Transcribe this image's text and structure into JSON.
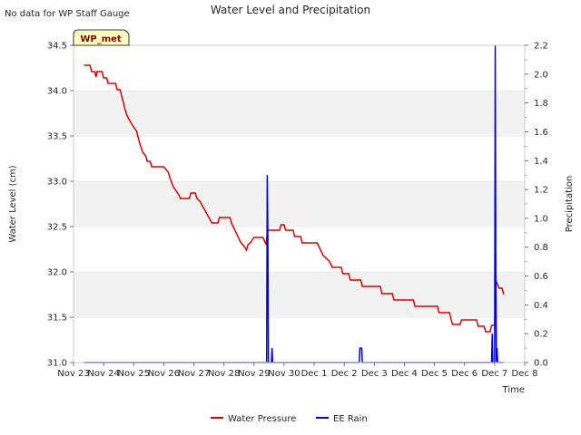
{
  "chart_data": {
    "type": "line",
    "title": "Water Level and Precipitation",
    "corner_note": "No data for WP Staff Gauge",
    "badge": "WP_met",
    "xlabel": "Time",
    "ylabel_left": "Water Level (cm)",
    "ylabel_right": "Precipitation",
    "x_range": [
      0,
      15
    ],
    "x_tick_labels": [
      "Nov 23",
      "Nov 24",
      "Nov 25",
      "Nov 26",
      "Nov 27",
      "Nov 28",
      "Nov 29",
      "Nov 30",
      "Dec 1",
      "Dec 2",
      "Dec 3",
      "Dec 4",
      "Dec 5",
      "Dec 6",
      "Dec 7",
      "Dec 8"
    ],
    "ylim_left": [
      31.0,
      34.5
    ],
    "y_ticks_left": [
      "31.0",
      "31.5",
      "32.0",
      "32.5",
      "33.0",
      "33.5",
      "34.0",
      "34.5"
    ],
    "ylim_right": [
      0.0,
      2.2
    ],
    "y_ticks_right": [
      "0.0",
      "0.2",
      "0.4",
      "0.6",
      "0.8",
      "1.0",
      "1.2",
      "1.4",
      "1.6",
      "1.8",
      "2.0",
      "2.2"
    ],
    "grid": "horizontal bands",
    "legend": "bottom-center",
    "series": [
      {
        "name": "Water Pressure",
        "axis": "left",
        "color": "#dd0000",
        "points": [
          [
            0.35,
            34.28
          ],
          [
            0.55,
            34.28
          ],
          [
            0.6,
            34.21
          ],
          [
            0.7,
            34.21
          ],
          [
            0.75,
            34.15
          ],
          [
            0.78,
            34.21
          ],
          [
            0.95,
            34.21
          ],
          [
            1.0,
            34.14
          ],
          [
            1.1,
            34.14
          ],
          [
            1.15,
            34.08
          ],
          [
            1.4,
            34.08
          ],
          [
            1.45,
            34.01
          ],
          [
            1.55,
            34.01
          ],
          [
            1.6,
            33.94
          ],
          [
            1.65,
            33.88
          ],
          [
            1.7,
            33.81
          ],
          [
            1.75,
            33.75
          ],
          [
            1.8,
            33.71
          ],
          [
            1.85,
            33.68
          ],
          [
            1.9,
            33.65
          ],
          [
            2.0,
            33.6
          ],
          [
            2.1,
            33.55
          ],
          [
            2.15,
            33.48
          ],
          [
            2.2,
            33.42
          ],
          [
            2.25,
            33.37
          ],
          [
            2.3,
            33.32
          ],
          [
            2.4,
            33.28
          ],
          [
            2.45,
            33.22
          ],
          [
            2.55,
            33.22
          ],
          [
            2.6,
            33.16
          ],
          [
            3.0,
            33.16
          ],
          [
            3.15,
            33.1
          ],
          [
            3.2,
            33.04
          ],
          [
            3.25,
            33.0
          ],
          [
            3.3,
            32.95
          ],
          [
            3.4,
            32.9
          ],
          [
            3.5,
            32.85
          ],
          [
            3.55,
            32.81
          ],
          [
            3.85,
            32.81
          ],
          [
            3.9,
            32.87
          ],
          [
            4.05,
            32.87
          ],
          [
            4.1,
            32.81
          ],
          [
            4.2,
            32.78
          ],
          [
            4.3,
            32.72
          ],
          [
            4.4,
            32.66
          ],
          [
            4.5,
            32.6
          ],
          [
            4.6,
            32.54
          ],
          [
            4.8,
            32.54
          ],
          [
            4.85,
            32.6
          ],
          [
            5.2,
            32.6
          ],
          [
            5.25,
            32.54
          ],
          [
            5.35,
            32.47
          ],
          [
            5.45,
            32.4
          ],
          [
            5.55,
            32.33
          ],
          [
            5.7,
            32.27
          ],
          [
            5.75,
            32.24
          ],
          [
            5.8,
            32.3
          ],
          [
            5.9,
            32.33
          ],
          [
            6.0,
            32.38
          ],
          [
            6.3,
            32.38
          ],
          [
            6.4,
            32.3
          ],
          [
            6.45,
            32.46
          ],
          [
            6.85,
            32.46
          ],
          [
            6.9,
            32.52
          ],
          [
            7.0,
            32.52
          ],
          [
            7.05,
            32.46
          ],
          [
            7.3,
            32.46
          ],
          [
            7.35,
            32.39
          ],
          [
            7.55,
            32.39
          ],
          [
            7.6,
            32.32
          ],
          [
            8.1,
            32.32
          ],
          [
            8.2,
            32.25
          ],
          [
            8.3,
            32.18
          ],
          [
            8.5,
            32.12
          ],
          [
            8.6,
            32.05
          ],
          [
            8.9,
            32.05
          ],
          [
            8.95,
            31.98
          ],
          [
            9.15,
            31.98
          ],
          [
            9.2,
            31.91
          ],
          [
            9.55,
            31.91
          ],
          [
            9.6,
            31.84
          ],
          [
            10.2,
            31.84
          ],
          [
            10.25,
            31.76
          ],
          [
            10.6,
            31.76
          ],
          [
            10.65,
            31.69
          ],
          [
            11.3,
            31.69
          ],
          [
            11.35,
            31.62
          ],
          [
            12.1,
            31.62
          ],
          [
            12.15,
            31.55
          ],
          [
            12.5,
            31.55
          ],
          [
            12.55,
            31.48
          ],
          [
            12.6,
            31.42
          ],
          [
            12.85,
            31.42
          ],
          [
            12.9,
            31.47
          ],
          [
            13.4,
            31.47
          ],
          [
            13.45,
            31.4
          ],
          [
            13.65,
            31.4
          ],
          [
            13.7,
            31.34
          ],
          [
            13.85,
            31.34
          ],
          [
            13.9,
            31.41
          ],
          [
            14.0,
            31.41
          ],
          [
            14.05,
            31.9
          ],
          [
            14.1,
            31.86
          ],
          [
            14.15,
            31.82
          ],
          [
            14.25,
            31.82
          ],
          [
            14.3,
            31.75
          ]
        ]
      },
      {
        "name": "EE Rain",
        "axis": "right",
        "color": "#0000dd",
        "points": [
          [
            0.35,
            0
          ],
          [
            6.42,
            0
          ],
          [
            6.44,
            1.3
          ],
          [
            6.46,
            0.9
          ],
          [
            6.48,
            0
          ],
          [
            6.58,
            0
          ],
          [
            6.6,
            0.1
          ],
          [
            6.62,
            0
          ],
          [
            9.5,
            0
          ],
          [
            9.52,
            0.1
          ],
          [
            9.58,
            0.1
          ],
          [
            9.6,
            0
          ],
          [
            13.9,
            0
          ],
          [
            13.92,
            0.2
          ],
          [
            13.94,
            0
          ],
          [
            14.0,
            0
          ],
          [
            14.02,
            2.2
          ],
          [
            14.04,
            0.6
          ],
          [
            14.06,
            0
          ],
          [
            14.08,
            0.1
          ],
          [
            14.1,
            0
          ],
          [
            14.3,
            0
          ]
        ]
      }
    ]
  }
}
